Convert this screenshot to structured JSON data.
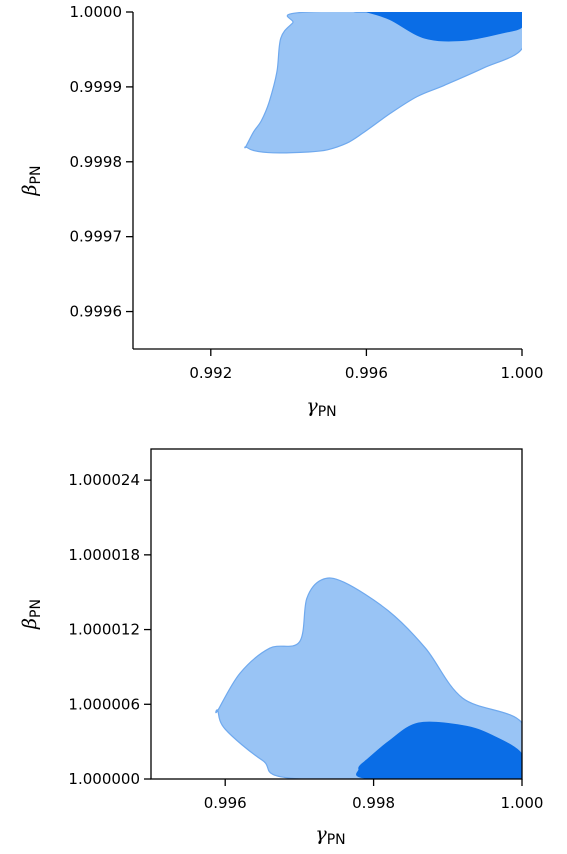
{
  "colors": {
    "outer_region": "#99c4f5",
    "outer_edge": "#6fa9ee",
    "inner_region": "#0a6de6"
  },
  "chart_data": [
    {
      "type": "area",
      "title": "",
      "xlabel": "γ",
      "xlabel_sub": "PN",
      "ylabel": "β",
      "ylabel_sub": "PN",
      "xlim": [
        0.99,
        1.0
      ],
      "ylim": [
        0.99955,
        1.0
      ],
      "xticks": [
        0.992,
        0.996,
        1.0
      ],
      "xtick_labels": [
        "0.992",
        "0.996",
        "1.000"
      ],
      "yticks": [
        0.9996,
        0.9997,
        0.9998,
        0.9999,
        1.0
      ],
      "ytick_labels": [
        "0.9996",
        "0.9997",
        "0.9998",
        "0.9999",
        "1.0000"
      ],
      "grid": false,
      "series": [
        {
          "region": "outer",
          "x": [
            0.9929,
            0.9931,
            0.9936,
            0.9945,
            0.995,
            0.9955,
            0.9959,
            0.9966,
            0.9973,
            0.998,
            0.999,
            1.0,
            1.0,
            0.9945,
            0.9941,
            0.9938,
            0.9937,
            0.9935,
            0.9933,
            0.9931,
            0.9929
          ],
          "y": [
            0.99982,
            0.999815,
            0.999812,
            0.999813,
            0.999816,
            0.999825,
            0.999838,
            0.999864,
            0.999887,
            0.999902,
            0.999925,
            0.999951,
            1.0,
            1.0,
            0.999985,
            0.999965,
            0.99992,
            0.99988,
            0.999855,
            0.99984,
            0.99982
          ]
        },
        {
          "region": "inner",
          "x": [
            0.996,
            0.9966,
            0.9975,
            0.9985,
            0.9995,
            1.0,
            1.0,
            0.996
          ],
          "y": [
            1.0,
            0.99999,
            0.999965,
            0.999962,
            0.999972,
            0.99998,
            1.0,
            1.0
          ]
        }
      ]
    },
    {
      "type": "area",
      "title": "",
      "xlabel": "γ",
      "xlabel_sub": "PN",
      "ylabel": "β",
      "ylabel_sub": "PN",
      "xlim": [
        0.995,
        1.0
      ],
      "ylim": [
        1.0,
        1.0000265
      ],
      "xticks": [
        0.996,
        0.998,
        1.0
      ],
      "xtick_labels": [
        "0.996",
        "0.998",
        "1.000"
      ],
      "yticks": [
        1.0,
        1.000006,
        1.000012,
        1.000018,
        1.000024
      ],
      "ytick_labels": [
        "1.000000",
        "1.000006",
        "1.000012",
        "1.000018",
        "1.000024"
      ],
      "grid": false,
      "series": [
        {
          "region": "outer",
          "x": [
            0.9959,
            0.9962,
            0.9966,
            0.997,
            0.9971,
            0.9973,
            0.9976,
            0.9982,
            0.9987,
            0.9992,
            1.0,
            1.0,
            0.997,
            0.9965,
            0.996,
            0.9959
          ],
          "y": [
            1.0000055,
            1.0000085,
            1.0000105,
            1.000011,
            1.0000145,
            1.000016,
            1.0000158,
            1.0000135,
            1.0000105,
            1.0000065,
            1.0000045,
            1.0,
            1.0,
            1.0000015,
            1.000004,
            1.0000055
          ]
        },
        {
          "region": "inner",
          "x": [
            0.9979,
            0.9982,
            0.9986,
            0.9992,
            0.9996,
            1.0,
            1.0,
            0.998,
            0.9978,
            0.9979
          ],
          "y": [
            1.0000015,
            1.000003,
            1.0000045,
            1.0000043,
            1.0000035,
            1.000002,
            1.0,
            1.0,
            1.0000008,
            1.0000015
          ]
        }
      ]
    }
  ]
}
